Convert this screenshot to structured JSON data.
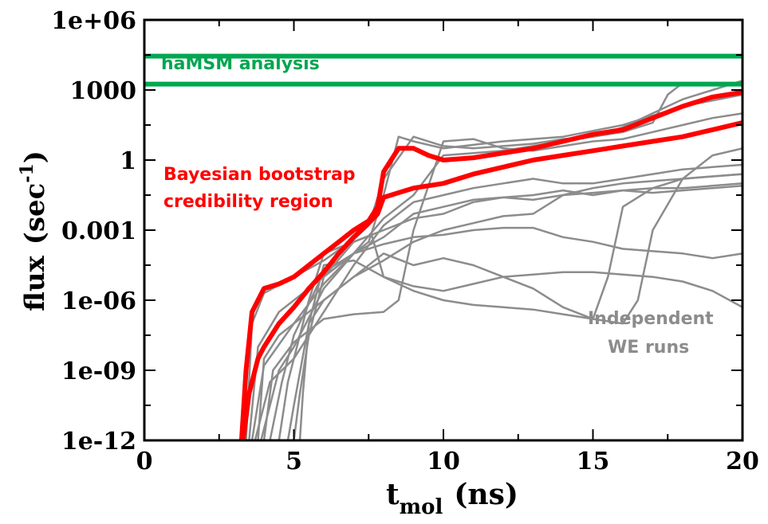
{
  "chart_data": {
    "type": "line",
    "xlabel": {
      "main": "t",
      "sub": "mol",
      "unit": "(ns)"
    },
    "ylabel": {
      "main": "flux",
      "unit_open": "(sec",
      "sup": "-1",
      "unit_close": ")"
    },
    "x_ticks": [
      "0",
      "5",
      "10",
      "15",
      "20"
    ],
    "y_ticks": [
      "1e-12",
      "1e-09",
      "1e-06",
      "0.001",
      "1",
      "1000",
      "1e+06"
    ],
    "xlim": [
      0,
      20
    ],
    "ylim_log10": [
      -12,
      6
    ],
    "y_scale": "log",
    "grid": false,
    "colors": {
      "we_runs": "#8c8c8c",
      "bayesian": "#ff0000",
      "hamsm": "#00a651",
      "axes": "#000000"
    },
    "annotations": {
      "hamsm": "haMSM analysis",
      "bayesian_line1": "Bayesian bootstrap",
      "bayesian_line2": "credibility region",
      "we_line1": "Independent",
      "we_line2": "WE runs"
    },
    "hamsm_levels_log10": [
      4.45,
      3.25
    ],
    "bayesian_region": [
      {
        "x": [
          3.25,
          3.4,
          3.6,
          4.0,
          4.5,
          5.0,
          5.5,
          6.0,
          6.5,
          7.0,
          7.5,
          7.8,
          8.0,
          8.5,
          9.0,
          9.5,
          10.0,
          11.0,
          12.0,
          13.0,
          14.0,
          15.0,
          16.0,
          17.0,
          18.0,
          19.0,
          20.0
        ],
        "y_log10": [
          -12,
          -9,
          -6.5,
          -5.5,
          -5.3,
          -5.0,
          -4.5,
          -4.0,
          -3.5,
          -3.0,
          -2.6,
          -2.0,
          -0.5,
          0.5,
          0.5,
          0.2,
          0.0,
          0.1,
          0.3,
          0.5,
          0.8,
          1.1,
          1.3,
          1.8,
          2.3,
          2.7,
          2.9
        ]
      },
      {
        "x": [
          3.3,
          3.5,
          3.8,
          4.0,
          4.5,
          5.0,
          5.5,
          6.0,
          6.5,
          7.0,
          7.5,
          7.8,
          8.0,
          9.0,
          10.0,
          11.0,
          12.0,
          13.0,
          14.0,
          15.0,
          16.0,
          17.0,
          18.0,
          19.0,
          20.0
        ],
        "y_log10": [
          -12,
          -10,
          -8.5,
          -8.0,
          -7.0,
          -6.3,
          -5.5,
          -4.8,
          -4.0,
          -3.3,
          -2.7,
          -2.3,
          -1.6,
          -1.2,
          -1.0,
          -0.6,
          -0.3,
          0.0,
          0.2,
          0.4,
          0.6,
          0.8,
          1.0,
          1.3,
          1.6
        ]
      }
    ],
    "we_runs": [
      {
        "x": [
          3.4,
          3.6,
          4.0,
          5.0,
          6.0,
          7.0,
          7.5,
          8.0,
          9.0,
          10.0,
          11.0,
          12.0,
          13.0,
          14.0,
          15.0,
          16.0,
          17.0,
          17.5,
          18.0,
          19.0,
          20.0
        ],
        "y_log10": [
          -12,
          -7,
          -5.7,
          -5.0,
          -4.3,
          -3.4,
          -2.8,
          -0.8,
          1.0,
          0.6,
          0.5,
          0.6,
          0.7,
          0.9,
          1.0,
          1.2,
          1.6,
          2.8,
          3.3,
          3.3,
          3.2
        ]
      },
      {
        "x": [
          3.5,
          3.8,
          4.5,
          5.5,
          6.5,
          7.5,
          8.0,
          8.5,
          9.0,
          10.0,
          12.0,
          14.0,
          16.0,
          18.0,
          20.0
        ],
        "y_log10": [
          -12,
          -8,
          -6.5,
          -5.5,
          -4.5,
          -3.5,
          -1.5,
          1.0,
          0.8,
          0.5,
          0.8,
          1.0,
          1.5,
          2.3,
          2.8
        ]
      },
      {
        "x": [
          3.6,
          4.0,
          5.0,
          6.0,
          7.0,
          8.0,
          9.0,
          10.0,
          11.0,
          12.0,
          13.0,
          14.0,
          15.0,
          16.0,
          17.0,
          18.0,
          19.0,
          20.0
        ],
        "y_log10": [
          -12,
          -8.8,
          -7.0,
          -5.3,
          -4.0,
          -2.5,
          -1.5,
          0.2,
          0.3,
          0.4,
          0.6,
          0.8,
          1.0,
          1.4,
          2.0,
          2.6,
          3.0,
          3.4
        ]
      },
      {
        "x": [
          3.7,
          4.2,
          5.0,
          6.0,
          7.0,
          8.0,
          9.0,
          10.0,
          11.0,
          12.0,
          13.0,
          14.0,
          15.0,
          16.0,
          17.0,
          18.0,
          19.0,
          20.0
        ],
        "y_log10": [
          -12,
          -9.5,
          -8.5,
          -6.5,
          -4.5,
          -2.8,
          -1.8,
          -1.5,
          -1.2,
          -1.0,
          -0.8,
          -1.0,
          -1.0,
          -0.8,
          -0.6,
          -0.4,
          -0.3,
          -0.2
        ]
      },
      {
        "x": [
          3.9,
          4.5,
          5.0,
          6.0,
          7.0,
          8.0,
          9.0,
          10.0,
          11.0,
          12.0,
          13.0,
          14.0,
          15.0,
          16.0,
          17.0,
          18.0,
          19.0,
          20.0
        ],
        "y_log10": [
          -12,
          -9.0,
          -8.0,
          -5.5,
          -4.0,
          -3.3,
          -2.3,
          -2.0,
          -1.7,
          -1.6,
          -1.5,
          -1.3,
          -1.5,
          -1.3,
          -1.4,
          -1.3,
          -1.2,
          -1.1
        ]
      },
      {
        "x": [
          4.2,
          4.6,
          5.0,
          6.0,
          7.0,
          8.0,
          9.0,
          10.0,
          11.0,
          12.0,
          13.0,
          14.0,
          15.0,
          16.0,
          17.0,
          18.0,
          19.0,
          20.0
        ],
        "y_log10": [
          -12,
          -9.5,
          -7.5,
          -4.8,
          -4.0,
          -3.6,
          -3.3,
          -3.2,
          -3.0,
          -2.9,
          -2.9,
          -3.3,
          -3.5,
          -3.8,
          -3.9,
          -4.0,
          -4.2,
          -4.0
        ]
      },
      {
        "x": [
          5.2,
          5.3,
          5.5,
          6.0,
          7.0,
          8.0,
          9.0,
          10.0,
          11.0,
          12.0,
          13.0,
          14.0,
          15.0,
          16.0,
          17.0,
          18.0,
          19.0,
          20.0
        ],
        "y_log10": [
          -12,
          -10,
          -7.0,
          -4.5,
          -4.3,
          -5.0,
          -5.4,
          -5.6,
          -5.3,
          -5.0,
          -4.9,
          -4.8,
          -4.8,
          -4.9,
          -5.0,
          -5.2,
          -5.6,
          -6.3
        ]
      },
      {
        "x": [
          5.0,
          5.2,
          5.5,
          6.0,
          7.0,
          7.6,
          8.0,
          9.0,
          10.0,
          11.0,
          12.0,
          13.0,
          14.0,
          15.0,
          15.5,
          16.0,
          17.0,
          18.0,
          19.0,
          20.0
        ],
        "y_log10": [
          -12,
          -10,
          -7.5,
          -5.0,
          -3.5,
          -3.2,
          -5.0,
          -5.6,
          -6.0,
          -6.2,
          -6.3,
          -6.4,
          -6.6,
          -6.8,
          -5.0,
          -2.0,
          -1.2,
          -0.8,
          -0.7,
          -0.6
        ]
      },
      {
        "x": [
          3.8,
          4.0,
          4.5,
          5.0,
          6.0,
          7.0,
          8.0,
          9.0,
          10.0,
          11.0,
          12.0,
          13.0,
          14.0,
          15.0,
          16.0,
          16.5,
          17.0,
          18.0,
          19.0,
          20.0
        ],
        "y_log10": [
          -12,
          -8.5,
          -7.5,
          -7.0,
          -6.0,
          -5.0,
          -4.0,
          -4.5,
          -4.2,
          -4.5,
          -5.0,
          -5.5,
          -6.3,
          -6.8,
          -7.0,
          -6.0,
          -3.0,
          -0.8,
          0.2,
          0.5
        ]
      },
      {
        "x": [
          4.5,
          4.8,
          5.0,
          5.5,
          6.0,
          7.0,
          8.0,
          9.0,
          10.0,
          11.0,
          12.0,
          13.0,
          14.0,
          15.0,
          16.0,
          17.0,
          18.0,
          19.0,
          20.0
        ],
        "y_log10": [
          -12,
          -9.5,
          -8.5,
          -6.0,
          -4.0,
          -3.5,
          -3.0,
          -2.5,
          -2.3,
          -1.8,
          -1.6,
          -1.7,
          -1.5,
          -1.4,
          -1.3,
          -1.2,
          -1.2,
          -1.1,
          -1.0
        ]
      },
      {
        "x": [
          4.0,
          4.3,
          5.0,
          6.0,
          7.0,
          8.0,
          8.5,
          9.0,
          10.0,
          11.0,
          12.0,
          13.0,
          14.0,
          15.0,
          16.0,
          17.0,
          18.0,
          19.0,
          20.0
        ],
        "y_log10": [
          -12,
          -9.0,
          -7.8,
          -6.8,
          -6.6,
          -6.5,
          -6.0,
          -3.0,
          0.8,
          0.9,
          0.5,
          0.4,
          0.6,
          0.8,
          0.9,
          1.2,
          1.5,
          1.8,
          2.0
        ]
      },
      {
        "x": [
          4.8,
          5.0,
          5.5,
          6.0,
          7.0,
          8.0,
          9.0,
          10.0,
          11.0,
          12.0,
          13.0,
          14.0,
          15.0,
          16.0,
          17.0,
          18.0,
          19.0,
          20.0
        ],
        "y_log10": [
          -12,
          -10.5,
          -7.0,
          -6.0,
          -5.0,
          -4.3,
          -3.5,
          -3.0,
          -2.7,
          -2.4,
          -2.3,
          -1.5,
          -1.2,
          -1.0,
          -0.9,
          -0.8,
          -0.7,
          -0.6
        ]
      }
    ]
  }
}
